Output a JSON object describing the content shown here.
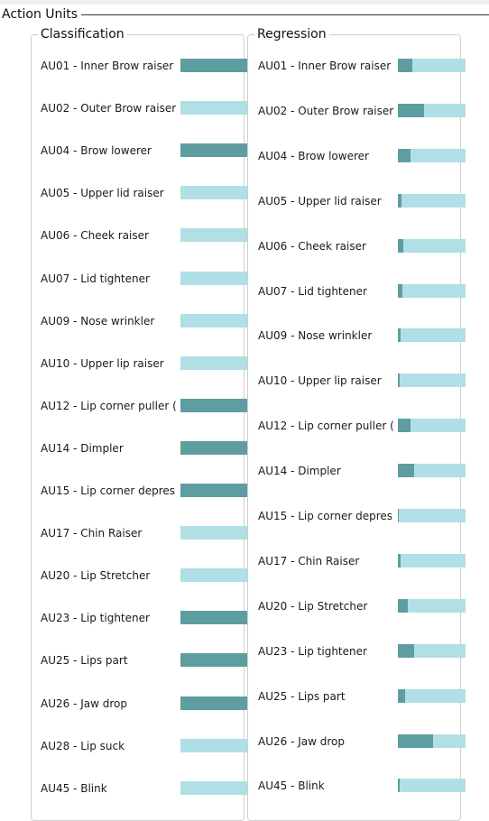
{
  "header": {
    "title": "Action Units"
  },
  "classification": {
    "title": "Classification",
    "items": [
      {
        "label": "AU01 - Inner Brow raiser",
        "active": true
      },
      {
        "label": "AU02 - Outer Brow raiser",
        "active": false
      },
      {
        "label": "AU04 - Brow lowerer",
        "active": true
      },
      {
        "label": "AU05 - Upper lid raiser",
        "active": false
      },
      {
        "label": "AU06 - Cheek raiser",
        "active": false
      },
      {
        "label": "AU07 - Lid tightener",
        "active": false
      },
      {
        "label": "AU09 - Nose wrinkler",
        "active": false
      },
      {
        "label": "AU10 - Upper lip raiser",
        "active": false
      },
      {
        "label": "AU12 - Lip corner puller (",
        "active": true
      },
      {
        "label": "AU14 - Dimpler",
        "active": true
      },
      {
        "label": "AU15 - Lip corner depres",
        "active": true
      },
      {
        "label": "AU17 - Chin Raiser",
        "active": false
      },
      {
        "label": "AU20 - Lip Stretcher",
        "active": false
      },
      {
        "label": "AU23 - Lip tightener",
        "active": true
      },
      {
        "label": "AU25 - Lips part",
        "active": true
      },
      {
        "label": "AU26 - Jaw drop",
        "active": true
      },
      {
        "label": "AU28 - Lip suck",
        "active": false
      },
      {
        "label": "AU45 - Blink",
        "active": false
      }
    ]
  },
  "regression": {
    "title": "Regression",
    "items": [
      {
        "label": "AU01 - Inner Brow raiser",
        "value": 0.21
      },
      {
        "label": "AU02 - Outer Brow raiser",
        "value": 0.38
      },
      {
        "label": "AU04 - Brow lowerer",
        "value": 0.19
      },
      {
        "label": "AU05 - Upper lid raiser",
        "value": 0.05
      },
      {
        "label": "AU06 - Cheek raiser",
        "value": 0.08
      },
      {
        "label": "AU07 - Lid tightener",
        "value": 0.06
      },
      {
        "label": "AU09 - Nose wrinkler",
        "value": 0.04
      },
      {
        "label": "AU10 - Upper lip raiser",
        "value": 0.02
      },
      {
        "label": "AU12 - Lip corner puller (",
        "value": 0.19
      },
      {
        "label": "AU14 - Dimpler",
        "value": 0.24
      },
      {
        "label": "AU15 - Lip corner depres",
        "value": 0.01
      },
      {
        "label": "AU17 - Chin Raiser",
        "value": 0.04
      },
      {
        "label": "AU20 - Lip Stretcher",
        "value": 0.14
      },
      {
        "label": "AU23 - Lip tightener",
        "value": 0.24
      },
      {
        "label": "AU25 - Lips part",
        "value": 0.1
      },
      {
        "label": "AU26 - Jaw drop",
        "value": 0.52
      },
      {
        "label": "AU45 - Blink",
        "value": 0.02
      }
    ]
  },
  "colors": {
    "bar_track": "#b0dfe5",
    "bar_fill": "#5f9ea0"
  }
}
